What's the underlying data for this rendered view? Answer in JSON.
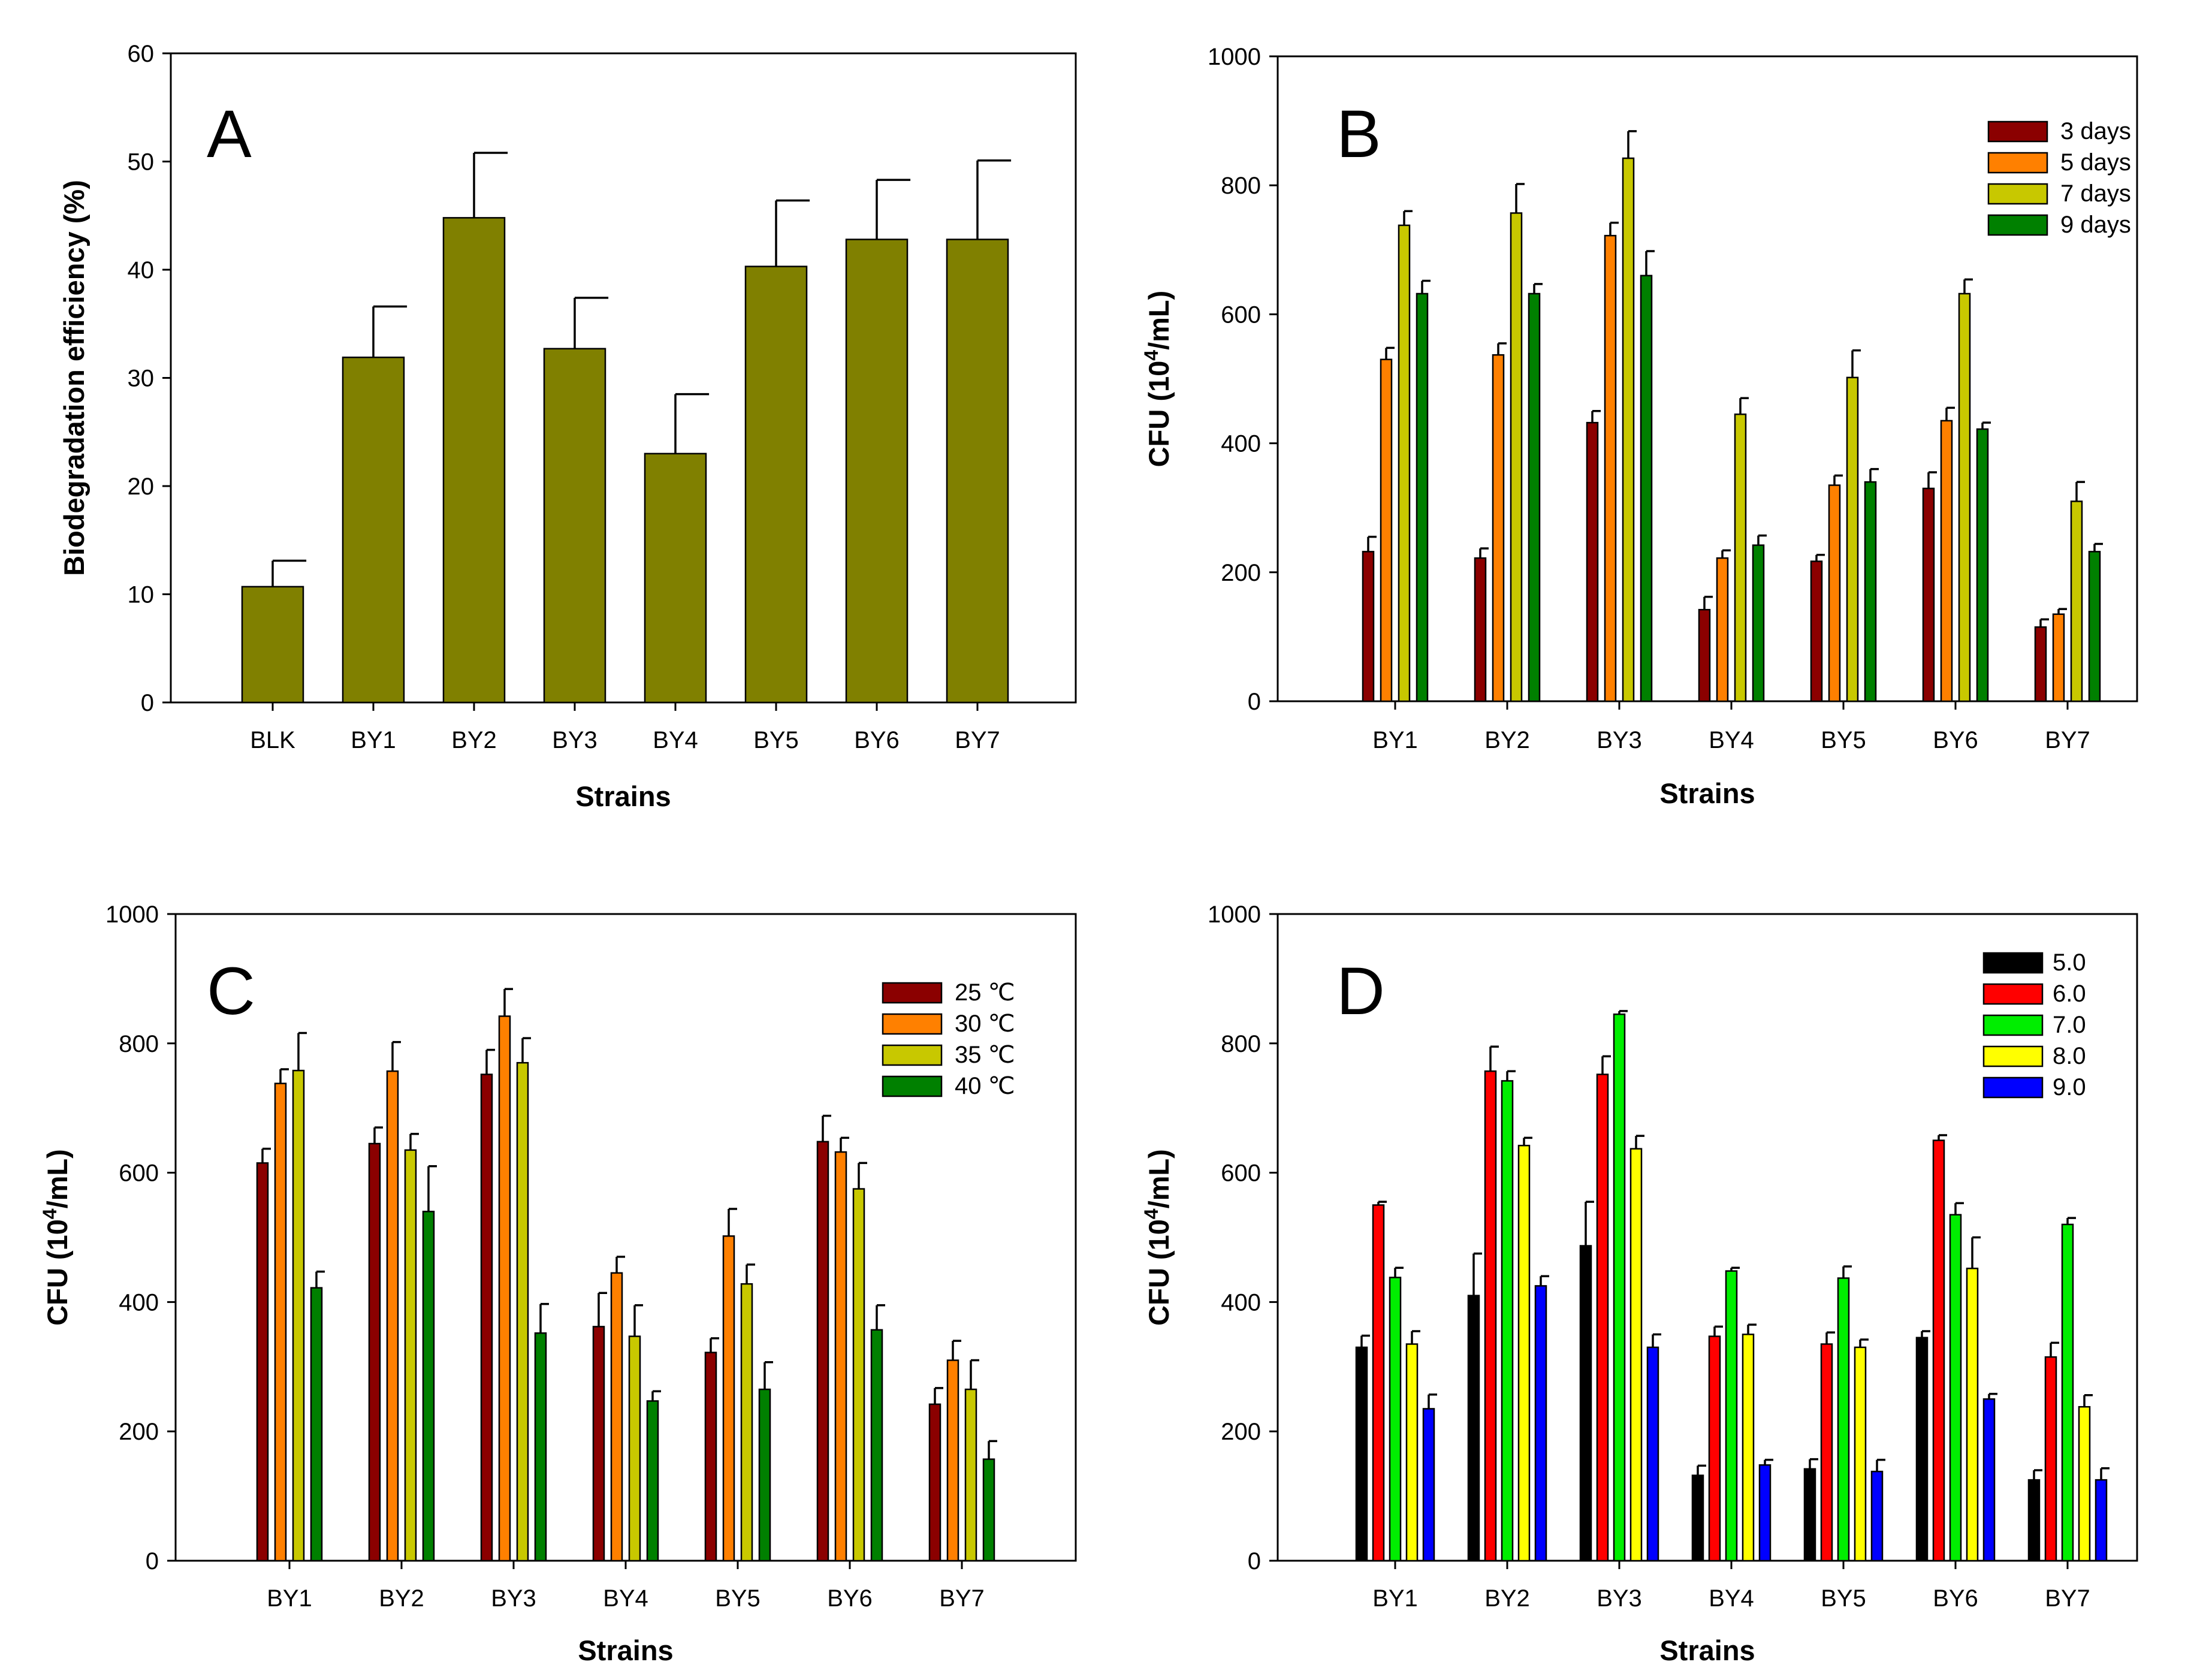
{
  "figure": {
    "caption": ""
  },
  "chart_data": [
    {
      "panel": "A",
      "type": "bar",
      "title": "",
      "xlabel": "Strains",
      "ylabel": "Biodegradation   efficiency (%)",
      "ylim": [
        0,
        60
      ],
      "yticks": [
        0,
        10,
        20,
        30,
        40,
        50,
        60
      ],
      "grid": false,
      "legend": null,
      "categories": [
        "BLK",
        "BY1",
        "BY2",
        "BY3",
        "BY4",
        "BY5",
        "BY6",
        "BY7"
      ],
      "series": [
        {
          "name": "Biodegradation efficiency",
          "color": "#808000",
          "values": [
            10.7,
            31.9,
            44.8,
            32.7,
            23.0,
            40.3,
            42.8,
            42.8
          ],
          "errors": [
            2.4,
            4.7,
            6.0,
            4.7,
            5.5,
            6.1,
            5.5,
            7.3
          ]
        }
      ]
    },
    {
      "panel": "B",
      "type": "bar",
      "title": "",
      "xlabel": "Strains",
      "ylabel_prefix": "CFU (10",
      "ylabel_exp": "4",
      "ylabel_suffix": "/mL)",
      "ylim": [
        0,
        1000
      ],
      "yticks": [
        0,
        200,
        400,
        600,
        800,
        1000
      ],
      "grid": false,
      "legend": "top-right",
      "categories": [
        "BY1",
        "BY2",
        "BY3",
        "BY4",
        "BY5",
        "BY6",
        "BY7"
      ],
      "series": [
        {
          "name": "3 days",
          "color": "#8B0000",
          "values": [
            232,
            222,
            432,
            142,
            217,
            330,
            115
          ],
          "errors": [
            23,
            15,
            18,
            20,
            10,
            25,
            12
          ]
        },
        {
          "name": "5 days",
          "color": "#FF8000",
          "values": [
            530,
            537,
            722,
            222,
            335,
            435,
            135
          ],
          "errors": [
            18,
            18,
            20,
            12,
            15,
            20,
            8
          ]
        },
        {
          "name": "7 days",
          "color": "#C8C800",
          "values": [
            738,
            757,
            842,
            445,
            502,
            632,
            310
          ],
          "errors": [
            22,
            45,
            42,
            25,
            42,
            22,
            30
          ]
        },
        {
          "name": "9 days",
          "color": "#008000",
          "values": [
            632,
            632,
            660,
            242,
            340,
            422,
            232
          ],
          "errors": [
            20,
            15,
            38,
            15,
            20,
            10,
            12
          ]
        }
      ]
    },
    {
      "panel": "C",
      "type": "bar",
      "title": "",
      "xlabel": "Strains",
      "ylabel_prefix": "CFU (10",
      "ylabel_exp": "4",
      "ylabel_suffix": "/mL)",
      "ylim": [
        0,
        1000
      ],
      "yticks": [
        0,
        200,
        400,
        600,
        800,
        1000
      ],
      "grid": false,
      "legend": "top-right",
      "categories": [
        "BY1",
        "BY2",
        "BY3",
        "BY4",
        "BY5",
        "BY6",
        "BY7"
      ],
      "series": [
        {
          "name": "25 ℃",
          "color": "#8B0000",
          "values": [
            615,
            645,
            752,
            362,
            322,
            648,
            242
          ],
          "errors": [
            22,
            25,
            38,
            52,
            22,
            40,
            25
          ]
        },
        {
          "name": "30 ℃",
          "color": "#FF8000",
          "values": [
            738,
            757,
            842,
            445,
            502,
            632,
            310
          ],
          "errors": [
            22,
            45,
            42,
            25,
            42,
            22,
            30
          ]
        },
        {
          "name": "35 ℃",
          "color": "#C8C800",
          "values": [
            758,
            635,
            770,
            347,
            428,
            575,
            265
          ],
          "errors": [
            58,
            25,
            38,
            48,
            30,
            40,
            45
          ]
        },
        {
          "name": "40 ℃",
          "color": "#008000",
          "values": [
            422,
            540,
            352,
            247,
            265,
            357,
            157
          ],
          "errors": [
            25,
            70,
            45,
            15,
            42,
            38,
            28
          ]
        }
      ]
    },
    {
      "panel": "D",
      "type": "bar",
      "title": "",
      "xlabel": "Strains",
      "ylabel_prefix": "CFU (10",
      "ylabel_exp": "4",
      "ylabel_suffix": "/mL)",
      "ylim": [
        0,
        1000
      ],
      "yticks": [
        0,
        200,
        400,
        600,
        800,
        1000
      ],
      "grid": false,
      "legend": "top-right",
      "categories": [
        "BY1",
        "BY2",
        "BY3",
        "BY4",
        "BY5",
        "BY6",
        "BY7"
      ],
      "series": [
        {
          "name": "5.0",
          "color": "#000000",
          "values": [
            330,
            410,
            487,
            132,
            142,
            345,
            125
          ],
          "errors": [
            18,
            65,
            68,
            15,
            15,
            10,
            15
          ]
        },
        {
          "name": "6.0",
          "color": "#FF0000",
          "values": [
            550,
            757,
            752,
            347,
            335,
            650,
            315
          ],
          "errors": [
            5,
            38,
            28,
            15,
            18,
            8,
            22
          ]
        },
        {
          "name": "7.0",
          "color": "#00EE00",
          "values": [
            438,
            742,
            845,
            448,
            437,
            535,
            520
          ],
          "errors": [
            15,
            15,
            5,
            5,
            18,
            18,
            10
          ]
        },
        {
          "name": "8.0",
          "color": "#FFFF00",
          "values": [
            335,
            642,
            637,
            350,
            330,
            452,
            238
          ],
          "errors": [
            20,
            12,
            20,
            15,
            12,
            48,
            18
          ]
        },
        {
          "name": "9.0",
          "color": "#0000FF",
          "values": [
            235,
            425,
            330,
            148,
            138,
            250,
            125
          ],
          "errors": [
            22,
            15,
            20,
            8,
            18,
            8,
            18
          ]
        }
      ]
    }
  ]
}
